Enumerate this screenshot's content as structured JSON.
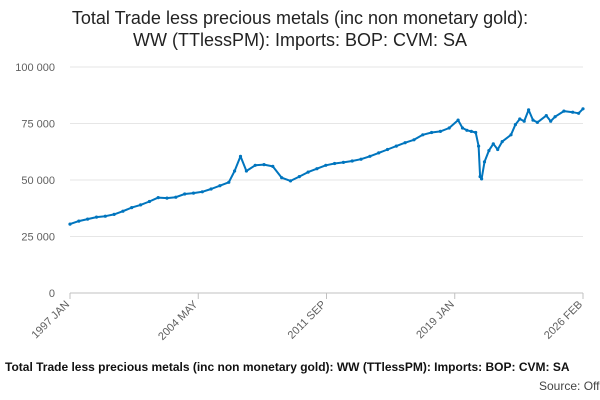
{
  "chart_data": {
    "type": "line",
    "title": "Total Trade less precious metals (inc non monetary gold): WW (TTlessPM): Imports: BOP: CVM: SA",
    "title_lines": [
      "Total Trade less precious metals (inc non monetary gold):",
      "WW (TTlessPM): Imports: BOP: CVM: SA"
    ],
    "xlabel": "",
    "ylabel": "",
    "ylim": [
      0,
      100000
    ],
    "y_ticks": [
      0,
      25000,
      50000,
      75000,
      100000
    ],
    "y_tick_labels": [
      "0",
      "25 000",
      "50 000",
      "75 000",
      "100 000"
    ],
    "x_range": [
      "1997-01",
      "2026-02"
    ],
    "x_tick_labels": [
      "1997 JAN",
      "2004 MAY",
      "2011 SEP",
      "2019 JAN",
      "2026 FEB"
    ],
    "grid": "horizontal",
    "line_color": "#0075be",
    "series": [
      {
        "values": [
          {
            "x": "1997-01",
            "y": 30500
          },
          {
            "x": "1997-07",
            "y": 31800
          },
          {
            "x": "1998-01",
            "y": 32700
          },
          {
            "x": "1998-07",
            "y": 33600
          },
          {
            "x": "1999-01",
            "y": 34000
          },
          {
            "x": "1999-07",
            "y": 34800
          },
          {
            "x": "2000-01",
            "y": 36200
          },
          {
            "x": "2000-07",
            "y": 37800
          },
          {
            "x": "2001-01",
            "y": 39000
          },
          {
            "x": "2001-07",
            "y": 40500
          },
          {
            "x": "2002-01",
            "y": 42200
          },
          {
            "x": "2002-07",
            "y": 42000
          },
          {
            "x": "2003-01",
            "y": 42400
          },
          {
            "x": "2003-07",
            "y": 43800
          },
          {
            "x": "2004-01",
            "y": 44200
          },
          {
            "x": "2004-07",
            "y": 44800
          },
          {
            "x": "2005-01",
            "y": 46000
          },
          {
            "x": "2005-07",
            "y": 47500
          },
          {
            "x": "2006-01",
            "y": 49000
          },
          {
            "x": "2006-05",
            "y": 54000
          },
          {
            "x": "2006-09",
            "y": 60500
          },
          {
            "x": "2007-01",
            "y": 54000
          },
          {
            "x": "2007-07",
            "y": 56500
          },
          {
            "x": "2008-01",
            "y": 56800
          },
          {
            "x": "2008-07",
            "y": 56000
          },
          {
            "x": "2009-01",
            "y": 51000
          },
          {
            "x": "2009-07",
            "y": 49600
          },
          {
            "x": "2010-01",
            "y": 51500
          },
          {
            "x": "2010-07",
            "y": 53500
          },
          {
            "x": "2011-01",
            "y": 55000
          },
          {
            "x": "2011-07",
            "y": 56500
          },
          {
            "x": "2012-01",
            "y": 57300
          },
          {
            "x": "2012-07",
            "y": 57800
          },
          {
            "x": "2013-01",
            "y": 58400
          },
          {
            "x": "2013-07",
            "y": 59200
          },
          {
            "x": "2014-01",
            "y": 60500
          },
          {
            "x": "2014-07",
            "y": 62000
          },
          {
            "x": "2015-01",
            "y": 63500
          },
          {
            "x": "2015-07",
            "y": 65000
          },
          {
            "x": "2016-01",
            "y": 66500
          },
          {
            "x": "2016-07",
            "y": 67800
          },
          {
            "x": "2017-01",
            "y": 70000
          },
          {
            "x": "2017-07",
            "y": 71000
          },
          {
            "x": "2018-01",
            "y": 71500
          },
          {
            "x": "2018-07",
            "y": 73000
          },
          {
            "x": "2019-01",
            "y": 76500
          },
          {
            "x": "2019-04",
            "y": 73000
          },
          {
            "x": "2019-07",
            "y": 72000
          },
          {
            "x": "2019-10",
            "y": 71500
          },
          {
            "x": "2020-01",
            "y": 71000
          },
          {
            "x": "2020-03",
            "y": 65000
          },
          {
            "x": "2020-04",
            "y": 51500
          },
          {
            "x": "2020-05",
            "y": 50500
          },
          {
            "x": "2020-07",
            "y": 58000
          },
          {
            "x": "2020-10",
            "y": 63000
          },
          {
            "x": "2021-01",
            "y": 66000
          },
          {
            "x": "2021-04",
            "y": 63500
          },
          {
            "x": "2021-07",
            "y": 67000
          },
          {
            "x": "2022-01",
            "y": 70000
          },
          {
            "x": "2022-04",
            "y": 74500
          },
          {
            "x": "2022-07",
            "y": 77000
          },
          {
            "x": "2022-10",
            "y": 76000
          },
          {
            "x": "2023-01",
            "y": 81000
          },
          {
            "x": "2023-04",
            "y": 76500
          },
          {
            "x": "2023-07",
            "y": 75500
          },
          {
            "x": "2024-01",
            "y": 78500
          },
          {
            "x": "2024-04",
            "y": 76000
          },
          {
            "x": "2024-07",
            "y": 78000
          },
          {
            "x": "2025-01",
            "y": 80500
          },
          {
            "x": "2025-07",
            "y": 80000
          },
          {
            "x": "2025-11",
            "y": 79500
          },
          {
            "x": "2026-02",
            "y": 81500
          }
        ]
      }
    ]
  },
  "footer": {
    "caption": "Total Trade less precious metals (inc non monetary gold): WW (TTlessPM): Imports: BOP: CVM: SA",
    "source": "Source: Office for National Statistics"
  }
}
